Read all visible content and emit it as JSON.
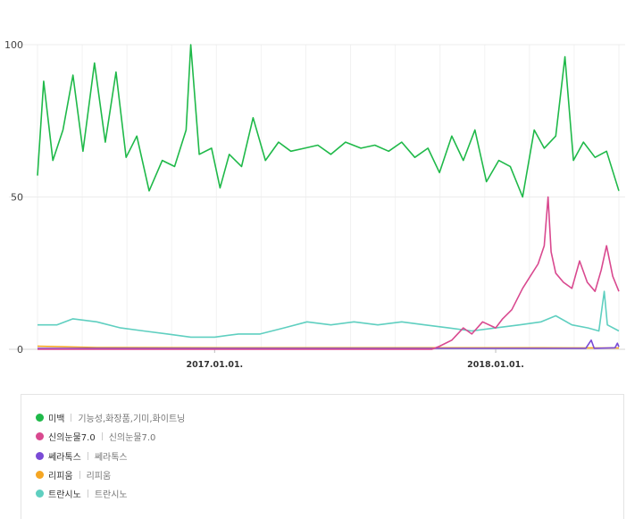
{
  "chart_data": {
    "type": "line",
    "title": "",
    "xlabel": "",
    "ylabel": "",
    "ylim": [
      0,
      100
    ],
    "yticks": [
      0,
      50,
      100
    ],
    "x_start": "2016-05-16",
    "x_end": "2018-06-10",
    "xticks": [
      {
        "date": "2017-01-01",
        "label": "2017.01.01."
      },
      {
        "date": "2018-01-01",
        "label": "2018.01.01."
      }
    ],
    "grid": true,
    "legend_position": "bottom",
    "series": [
      {
        "name": "미백",
        "keywords": "기능성,화장품,기미,화이트닝",
        "color": "#1fb949",
        "points": [
          [
            "2016-05-16",
            57
          ],
          [
            "2016-05-24",
            88
          ],
          [
            "2016-06-05",
            62
          ],
          [
            "2016-06-18",
            72
          ],
          [
            "2016-07-01",
            90
          ],
          [
            "2016-07-14",
            65
          ],
          [
            "2016-07-29",
            94
          ],
          [
            "2016-08-12",
            68
          ],
          [
            "2016-08-26",
            91
          ],
          [
            "2016-09-08",
            63
          ],
          [
            "2016-09-22",
            70
          ],
          [
            "2016-10-08",
            52
          ],
          [
            "2016-10-25",
            62
          ],
          [
            "2016-11-10",
            60
          ],
          [
            "2016-11-25",
            72
          ],
          [
            "2016-12-01",
            100
          ],
          [
            "2016-12-12",
            64
          ],
          [
            "2016-12-28",
            66
          ],
          [
            "2017-01-08",
            53
          ],
          [
            "2017-01-20",
            64
          ],
          [
            "2017-02-05",
            60
          ],
          [
            "2017-02-20",
            76
          ],
          [
            "2017-03-08",
            62
          ],
          [
            "2017-03-25",
            68
          ],
          [
            "2017-04-10",
            65
          ],
          [
            "2017-04-28",
            66
          ],
          [
            "2017-05-15",
            67
          ],
          [
            "2017-06-01",
            64
          ],
          [
            "2017-06-20",
            68
          ],
          [
            "2017-07-10",
            66
          ],
          [
            "2017-07-28",
            67
          ],
          [
            "2017-08-15",
            65
          ],
          [
            "2017-09-01",
            68
          ],
          [
            "2017-09-18",
            63
          ],
          [
            "2017-10-05",
            66
          ],
          [
            "2017-10-20",
            58
          ],
          [
            "2017-11-05",
            70
          ],
          [
            "2017-11-20",
            62
          ],
          [
            "2017-12-05",
            72
          ],
          [
            "2017-12-20",
            55
          ],
          [
            "2018-01-05",
            62
          ],
          [
            "2018-01-20",
            60
          ],
          [
            "2018-02-05",
            50
          ],
          [
            "2018-02-20",
            72
          ],
          [
            "2018-03-05",
            66
          ],
          [
            "2018-03-20",
            70
          ],
          [
            "2018-04-01",
            96
          ],
          [
            "2018-04-12",
            62
          ],
          [
            "2018-04-25",
            68
          ],
          [
            "2018-05-10",
            63
          ],
          [
            "2018-05-25",
            65
          ],
          [
            "2018-06-10",
            52
          ]
        ]
      },
      {
        "name": "신의눈물7.0",
        "keywords": "신의눈물7.0",
        "color": "#d9498f",
        "points": [
          [
            "2016-05-16",
            0
          ],
          [
            "2017-10-10",
            0
          ],
          [
            "2017-10-20",
            1
          ],
          [
            "2017-11-05",
            3
          ],
          [
            "2017-11-20",
            7
          ],
          [
            "2017-12-01",
            5
          ],
          [
            "2017-12-15",
            9
          ],
          [
            "2018-01-01",
            7
          ],
          [
            "2018-01-10",
            10
          ],
          [
            "2018-01-22",
            13
          ],
          [
            "2018-02-05",
            20
          ],
          [
            "2018-02-15",
            24
          ],
          [
            "2018-02-25",
            28
          ],
          [
            "2018-03-05",
            34
          ],
          [
            "2018-03-10",
            50
          ],
          [
            "2018-03-14",
            32
          ],
          [
            "2018-03-20",
            25
          ],
          [
            "2018-03-30",
            22
          ],
          [
            "2018-04-10",
            20
          ],
          [
            "2018-04-20",
            29
          ],
          [
            "2018-04-30",
            22
          ],
          [
            "2018-05-10",
            19
          ],
          [
            "2018-05-18",
            26
          ],
          [
            "2018-05-25",
            34
          ],
          [
            "2018-06-02",
            24
          ],
          [
            "2018-06-10",
            19
          ]
        ]
      },
      {
        "name": "쎄라톡스",
        "keywords": "쎄라톡스",
        "color": "#7a4bd6",
        "points": [
          [
            "2016-05-16",
            0.3
          ],
          [
            "2018-04-28",
            0.3
          ],
          [
            "2018-05-05",
            3
          ],
          [
            "2018-05-09",
            0.3
          ],
          [
            "2018-06-05",
            0.5
          ],
          [
            "2018-06-08",
            2
          ],
          [
            "2018-06-10",
            0.8
          ]
        ]
      },
      {
        "name": "리피움",
        "keywords": "리피움",
        "color": "#f5a623",
        "points": [
          [
            "2016-05-16",
            1
          ],
          [
            "2016-08-01",
            0.6
          ],
          [
            "2017-03-01",
            0.5
          ],
          [
            "2017-10-01",
            0.5
          ],
          [
            "2018-03-01",
            0.5
          ],
          [
            "2018-06-10",
            0.4
          ]
        ]
      },
      {
        "name": "트란시노",
        "keywords": "트란시노",
        "color": "#5fcfc0",
        "points": [
          [
            "2016-05-16",
            8
          ],
          [
            "2016-06-10",
            8
          ],
          [
            "2016-07-01",
            10
          ],
          [
            "2016-08-01",
            9
          ],
          [
            "2016-09-01",
            7
          ],
          [
            "2016-10-01",
            6
          ],
          [
            "2016-11-01",
            5
          ],
          [
            "2016-12-01",
            4
          ],
          [
            "2017-01-01",
            4
          ],
          [
            "2017-02-01",
            5
          ],
          [
            "2017-03-01",
            5
          ],
          [
            "2017-04-01",
            7
          ],
          [
            "2017-05-01",
            9
          ],
          [
            "2017-06-01",
            8
          ],
          [
            "2017-07-01",
            9
          ],
          [
            "2017-08-01",
            8
          ],
          [
            "2017-09-01",
            9
          ],
          [
            "2017-10-01",
            8
          ],
          [
            "2017-11-01",
            7
          ],
          [
            "2017-12-01",
            6
          ],
          [
            "2018-01-01",
            7
          ],
          [
            "2018-02-01",
            8
          ],
          [
            "2018-03-01",
            9
          ],
          [
            "2018-03-20",
            11
          ],
          [
            "2018-04-10",
            8
          ],
          [
            "2018-05-01",
            7
          ],
          [
            "2018-05-15",
            6
          ],
          [
            "2018-05-22",
            19
          ],
          [
            "2018-05-26",
            8
          ],
          [
            "2018-06-10",
            6
          ]
        ]
      }
    ]
  }
}
